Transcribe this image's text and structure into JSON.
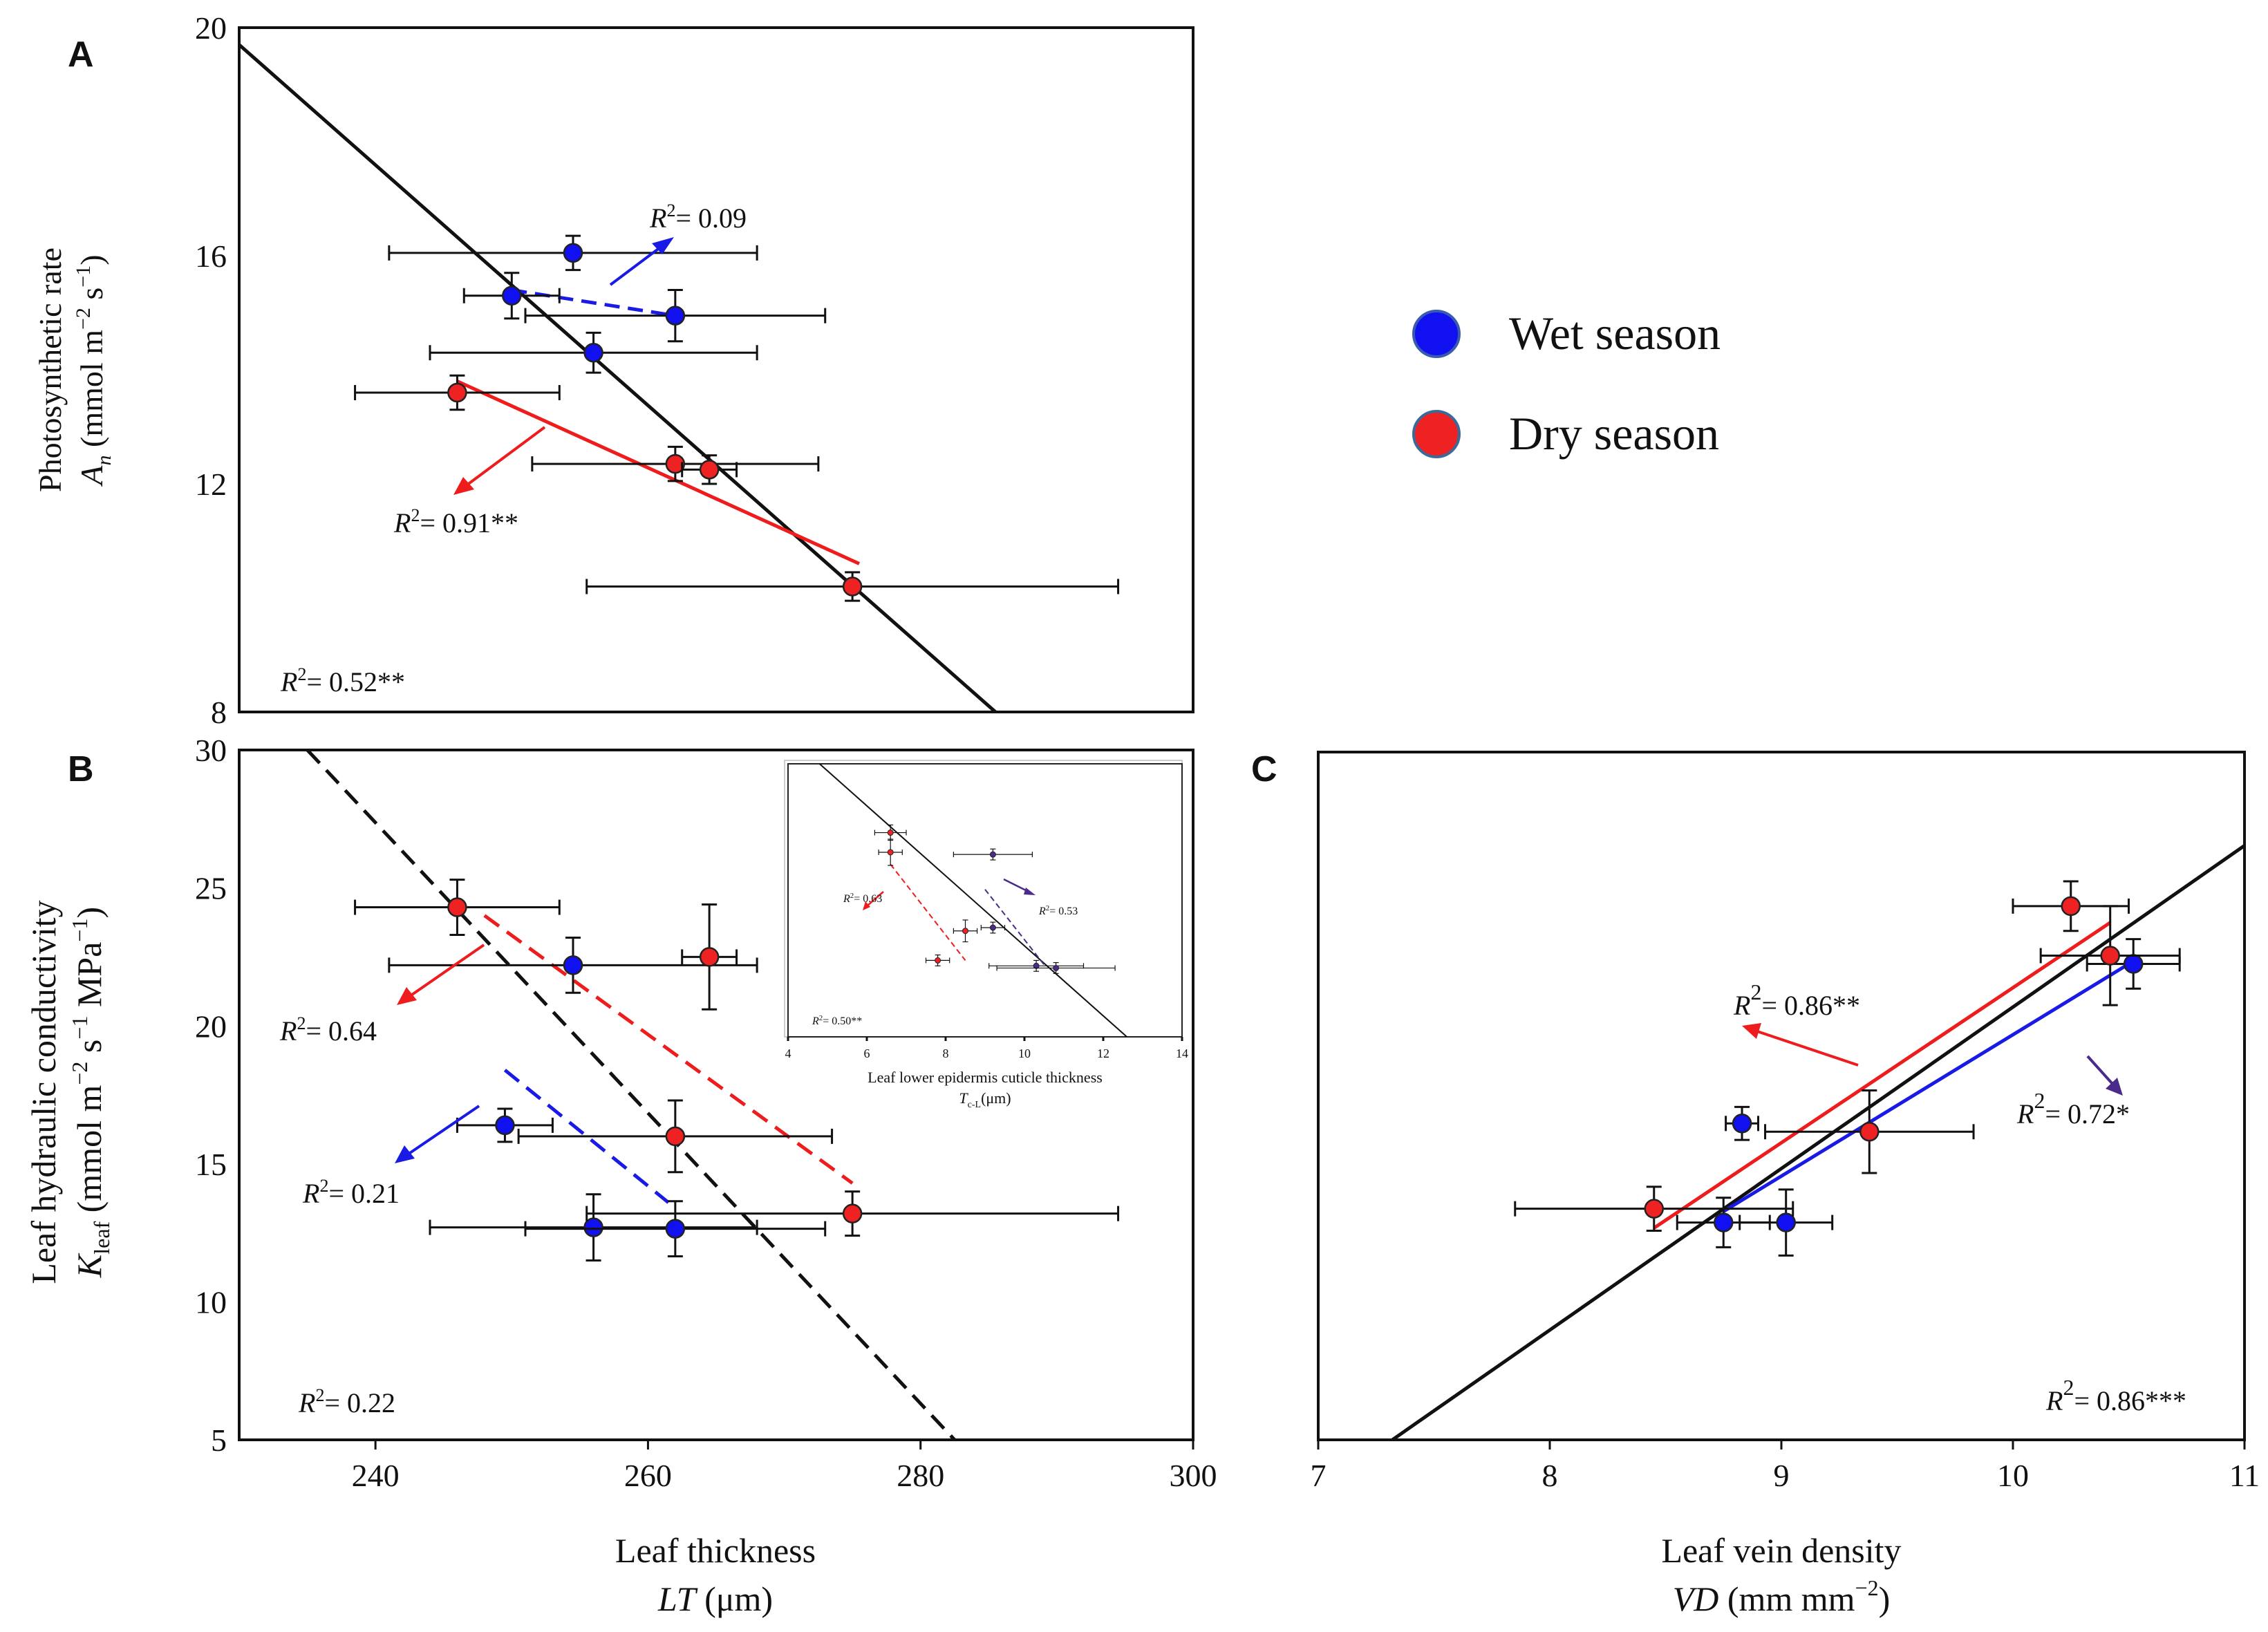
{
  "legend": {
    "wet_label": "Wet season",
    "dry_label": "Dry season",
    "wet_color": "#1010f0",
    "dry_color": "#ee2222"
  },
  "colors": {
    "wet_line": "#1a1ae6",
    "dry_line": "#ee1c1c",
    "purple": "#4a2a8a",
    "overall": "#111111"
  },
  "chart_data": [
    {
      "panel": "A",
      "type": "scatter",
      "ylabel_line1": "Photosynthetic rate",
      "ylabel_line2_sym": "A",
      "ylabel_line2_sub": "n",
      "ylabel_line2_unit": "(mmol m",
      "ylabel_line2_end": "s",
      "xlim": [
        230,
        300
      ],
      "ylim": [
        8,
        20
      ],
      "yticks": [
        8,
        12,
        16,
        20
      ],
      "wet": [
        {
          "x": 254.5,
          "y": 16.05,
          "xerr": 13.5,
          "yerr": 0.3
        },
        {
          "x": 250.0,
          "y": 15.3,
          "xerr": 3.5,
          "yerr": 0.4
        },
        {
          "x": 262.0,
          "y": 14.95,
          "xerr": 11.0,
          "yerr": 0.45
        },
        {
          "x": 256.0,
          "y": 14.3,
          "xerr": 12.0,
          "yerr": 0.35
        }
      ],
      "dry": [
        {
          "x": 246.0,
          "y": 13.6,
          "xerr": 7.5,
          "yerr": 0.3
        },
        {
          "x": 262.0,
          "y": 12.35,
          "xerr": 10.5,
          "yerr": 0.3
        },
        {
          "x": 264.5,
          "y": 12.25,
          "xerr": 2.0,
          "yerr": 0.25
        },
        {
          "x": 275.0,
          "y": 10.2,
          "xerr": 19.5,
          "yerr": 0.25
        }
      ],
      "fits": {
        "overall": {
          "x": [
            230,
            285.5
          ],
          "y": [
            19.7,
            8.0
          ]
        },
        "wet": {
          "x": [
            250,
            262
          ],
          "y": [
            15.4,
            14.95
          ]
        },
        "dry": {
          "x": [
            246,
            275.5
          ],
          "y": [
            13.8,
            10.6
          ]
        }
      },
      "annotations": {
        "overall": "= 0.52**",
        "wet": "= 0.09",
        "dry": "= 0.91**"
      }
    },
    {
      "panel": "B",
      "type": "scatter",
      "xlabel_line1": "Leaf thickness",
      "xlabel_line2_sym": "LT",
      "xlabel_line2_unit": "(μm)",
      "ylabel_line1": "Leaf hydraulic conductivity",
      "ylabel_line2_sym": "K",
      "ylabel_line2_sub": "leaf",
      "ylabel_line2_unit": "(mmol m",
      "ylabel_line2_mid": "s",
      "ylabel_line2_end": "MPa",
      "xlim": [
        230,
        300
      ],
      "ylim": [
        5,
        30
      ],
      "xticks": [
        240,
        260,
        280,
        300
      ],
      "yticks": [
        5,
        10,
        15,
        20,
        25,
        30
      ],
      "wet": [
        {
          "x": 254.5,
          "y": 22.2,
          "xerr": 13.5,
          "yerr": 1.0
        },
        {
          "x": 249.5,
          "y": 16.4,
          "xerr": 3.5,
          "yerr": 0.6
        },
        {
          "x": 256.0,
          "y": 12.7,
          "xerr": 12.0,
          "yerr": 1.2
        },
        {
          "x": 262.0,
          "y": 12.65,
          "xerr": 11.0,
          "yerr": 1.0
        }
      ],
      "dry": [
        {
          "x": 246.0,
          "y": 24.3,
          "xerr": 7.5,
          "yerr": 1.0
        },
        {
          "x": 264.5,
          "y": 22.5,
          "xerr": 2.0,
          "yerr": 1.9
        },
        {
          "x": 262.0,
          "y": 16.0,
          "xerr": 11.5,
          "yerr": 1.3
        },
        {
          "x": 275.0,
          "y": 13.2,
          "xerr": 19.5,
          "yerr": 0.8
        }
      ],
      "fits": {
        "overall": {
          "x": [
            235,
            282.5
          ],
          "y": [
            30,
            5
          ]
        },
        "wet": {
          "x": [
            249.5,
            261.5
          ],
          "y": [
            18.4,
            13.6
          ]
        },
        "dry": {
          "x": [
            248,
            275
          ],
          "y": [
            24.0,
            14.3
          ]
        }
      },
      "annotations": {
        "overall": "= 0.22",
        "wet": "= 0.21",
        "dry": "= 0.64"
      },
      "inset": {
        "xlabel_line1": "Leaf lower epidermis cuticle thickness",
        "xlabel_line2_sym": "T",
        "xlabel_line2_sub": "c-L",
        "xlabel_line2_unit": "(μm)",
        "xlim": [
          4,
          14
        ],
        "ylim": [
          5,
          30
        ],
        "xticks": [
          4,
          6,
          8,
          10,
          12,
          14
        ],
        "wet": [
          {
            "x": 9.2,
            "y": 21.7,
            "xerr": 1.0,
            "yerr": 0.5
          },
          {
            "x": 9.2,
            "y": 15.0,
            "xerr": 0.3,
            "yerr": 0.5
          },
          {
            "x": 10.3,
            "y": 11.5,
            "xerr": 1.2,
            "yerr": 0.5
          },
          {
            "x": 10.8,
            "y": 11.3,
            "xerr": 1.5,
            "yerr": 0.5
          }
        ],
        "dry": [
          {
            "x": 6.6,
            "y": 23.7,
            "xerr": 0.4,
            "yerr": 0.7
          },
          {
            "x": 6.6,
            "y": 21.9,
            "xerr": 0.3,
            "yerr": 1.2
          },
          {
            "x": 8.5,
            "y": 14.7,
            "xerr": 0.3,
            "yerr": 1.0
          },
          {
            "x": 7.8,
            "y": 12.0,
            "xerr": 0.3,
            "yerr": 0.5
          }
        ],
        "fits": {
          "overall": {
            "x": [
              4.8,
              12.6
            ],
            "y": [
              30,
              5
            ]
          },
          "dry": {
            "x": [
              6.6,
              8.5
            ],
            "y": [
              20.8,
              12.0
            ]
          },
          "wet": {
            "x": [
              9.0,
              10.5
            ],
            "y": [
              18.5,
              11.6
            ]
          }
        },
        "annotations": {
          "overall": "= 0.50**",
          "dry": "= 0.63",
          "wet": "= 0.53"
        }
      }
    },
    {
      "panel": "C",
      "type": "scatter",
      "xlabel_line1": "Leaf vein density",
      "xlabel_line2_sym": "VD",
      "xlabel_line2_unit": "(mm mm",
      "xlim": [
        7,
        11
      ],
      "ylim": [
        5,
        30
      ],
      "xticks": [
        7,
        8,
        9,
        10,
        11
      ],
      "wet": [
        {
          "x": 10.52,
          "y": 22.3,
          "xerr": 0.2,
          "yerr": 0.9
        },
        {
          "x": 8.83,
          "y": 16.5,
          "xerr": 0.07,
          "yerr": 0.6
        },
        {
          "x": 8.75,
          "y": 12.9,
          "xerr": 0.2,
          "yerr": 0.9
        },
        {
          "x": 9.02,
          "y": 12.9,
          "xerr": 0.2,
          "yerr": 1.2
        }
      ],
      "dry": [
        {
          "x": 10.25,
          "y": 24.4,
          "xerr": 0.25,
          "yerr": 0.9
        },
        {
          "x": 10.42,
          "y": 22.6,
          "xerr": 0.3,
          "yerr": 1.8
        },
        {
          "x": 9.38,
          "y": 16.2,
          "xerr": 0.45,
          "yerr": 1.5
        },
        {
          "x": 8.45,
          "y": 13.4,
          "xerr": 0.6,
          "yerr": 0.8
        }
      ],
      "fits": {
        "overall": {
          "x": [
            7.32,
            11.0
          ],
          "y": [
            5.0,
            26.6
          ]
        },
        "dry": {
          "x": [
            8.45,
            10.42
          ],
          "y": [
            12.7,
            23.8
          ]
        },
        "wet": {
          "x": [
            8.75,
            10.52
          ],
          "y": [
            13.3,
            22.4
          ]
        }
      },
      "annotations": {
        "overall": "= 0.86***",
        "dry": "= 0.86**",
        "wet": "= 0.72*"
      }
    }
  ],
  "panel_labels": {
    "a": "A",
    "b": "B",
    "c": "C"
  },
  "r2_symbol": "R",
  "r2_power": "2",
  "exp_neg2": "−2",
  "exp_neg1": "−1",
  "exp_neg2_ascii": "-2",
  "exp_neg1_ascii": "-1"
}
